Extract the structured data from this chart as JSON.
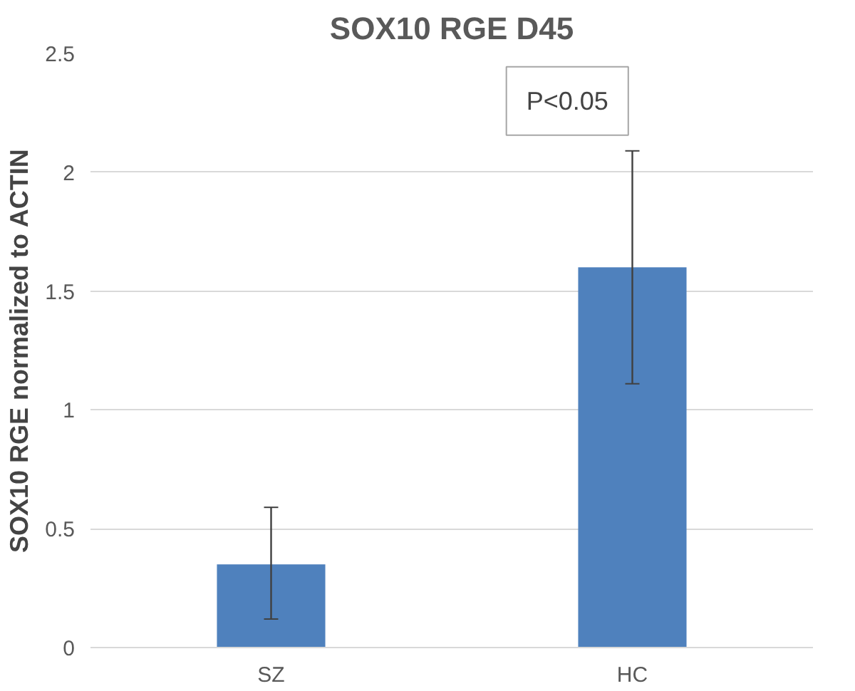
{
  "chart_data": {
    "type": "bar",
    "title": "SOX10 RGE D45",
    "ylabel": "SOX10 RGE normalized to ACTIN",
    "categories": [
      "SZ",
      "HC"
    ],
    "values": [
      0.35,
      1.6
    ],
    "errors": [
      [
        0.12,
        0.59
      ],
      [
        1.11,
        2.09
      ]
    ],
    "color": "#4f81bd",
    "ylim": [
      0,
      2.5
    ],
    "yticks": [
      0,
      0.5,
      1,
      1.5,
      2,
      2.5
    ],
    "grid": "y",
    "annotations": [
      "P<0.05"
    ]
  }
}
